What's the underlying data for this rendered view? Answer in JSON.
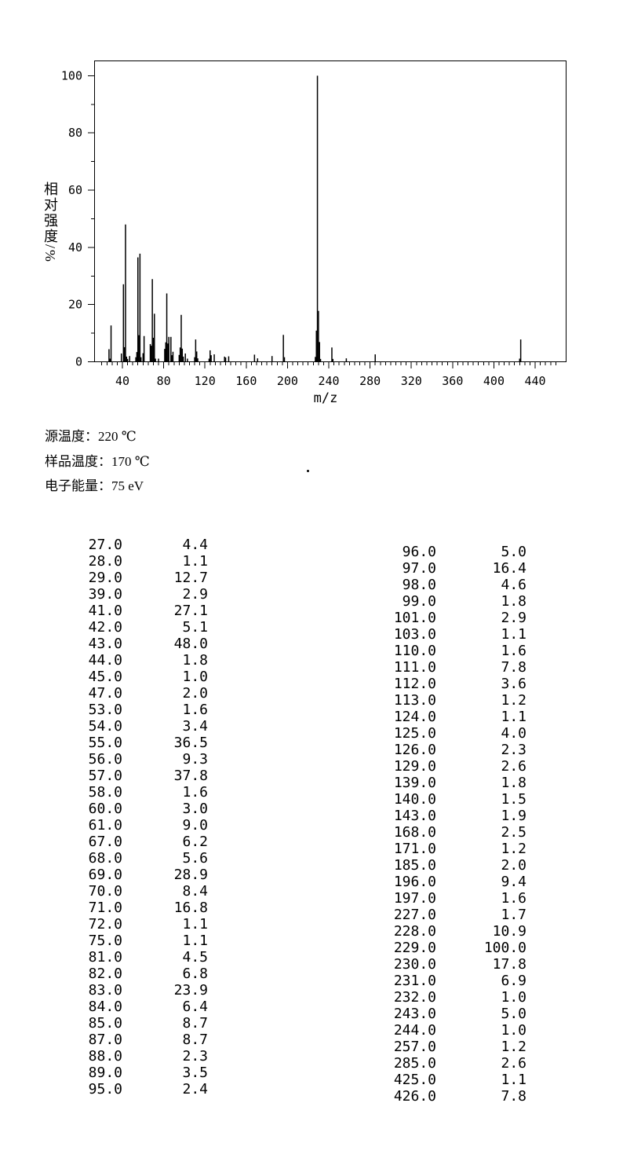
{
  "chart_data": {
    "type": "bar",
    "title": "",
    "xlabel": "m/z",
    "ylabel": "相对强度/%",
    "xlim": [
      13,
      470
    ],
    "ylim": [
      0,
      105.2
    ],
    "grid": false,
    "legend": null,
    "x_major_ticks": [
      40,
      80,
      120,
      160,
      200,
      240,
      280,
      320,
      360,
      400,
      440
    ],
    "x_minor_step": 5,
    "x_minor_range": [
      20,
      460
    ],
    "y_major_ticks": [
      0,
      20,
      40,
      60,
      80,
      100
    ],
    "y_minor_step": 10,
    "line_color": "#000000",
    "peaks": [
      [
        27,
        4.4
      ],
      [
        28,
        1.1
      ],
      [
        29,
        12.7
      ],
      [
        39,
        2.9
      ],
      [
        41,
        27.1
      ],
      [
        42,
        5.1
      ],
      [
        43,
        48.0
      ],
      [
        44,
        1.8
      ],
      [
        45,
        1.0
      ],
      [
        47,
        2.0
      ],
      [
        53,
        1.6
      ],
      [
        54,
        3.4
      ],
      [
        55,
        36.5
      ],
      [
        56,
        9.3
      ],
      [
        57,
        37.8
      ],
      [
        58,
        1.6
      ],
      [
        60,
        3.0
      ],
      [
        61,
        9.0
      ],
      [
        67,
        6.2
      ],
      [
        68,
        5.6
      ],
      [
        69,
        28.9
      ],
      [
        70,
        8.4
      ],
      [
        71,
        16.8
      ],
      [
        72,
        1.1
      ],
      [
        75,
        1.1
      ],
      [
        81,
        4.5
      ],
      [
        82,
        6.8
      ],
      [
        83,
        23.9
      ],
      [
        84,
        6.4
      ],
      [
        85,
        8.7
      ],
      [
        87,
        8.7
      ],
      [
        88,
        2.3
      ],
      [
        89,
        3.5
      ],
      [
        95,
        2.4
      ],
      [
        96,
        5.0
      ],
      [
        97,
        16.4
      ],
      [
        98,
        4.6
      ],
      [
        99,
        1.8
      ],
      [
        101,
        2.9
      ],
      [
        103,
        1.1
      ],
      [
        110,
        1.6
      ],
      [
        111,
        7.8
      ],
      [
        112,
        3.6
      ],
      [
        113,
        1.2
      ],
      [
        124,
        1.1
      ],
      [
        125,
        4.0
      ],
      [
        126,
        2.3
      ],
      [
        129,
        2.6
      ],
      [
        139,
        1.8
      ],
      [
        140,
        1.5
      ],
      [
        143,
        1.9
      ],
      [
        168,
        2.5
      ],
      [
        171,
        1.2
      ],
      [
        185,
        2.0
      ],
      [
        196,
        9.4
      ],
      [
        197,
        1.6
      ],
      [
        227,
        1.7
      ],
      [
        228,
        10.9
      ],
      [
        229,
        100.0
      ],
      [
        230,
        17.8
      ],
      [
        231,
        6.9
      ],
      [
        232,
        1.0
      ],
      [
        243,
        5.0
      ],
      [
        244,
        1.0
      ],
      [
        257,
        1.2
      ],
      [
        285,
        2.6
      ],
      [
        425,
        1.1
      ],
      [
        426,
        7.8
      ]
    ]
  },
  "conditions": [
    {
      "label": "源温度：",
      "value": "220 ℃"
    },
    {
      "label": "样品温度：",
      "value": "170 ℃"
    },
    {
      "label": "电子能量：",
      "value": "75 eV"
    }
  ],
  "peak_table": {
    "left": [
      [
        "27.0",
        "4.4"
      ],
      [
        "28.0",
        "1.1"
      ],
      [
        "29.0",
        "12.7"
      ],
      [
        "39.0",
        "2.9"
      ],
      [
        "41.0",
        "27.1"
      ],
      [
        "42.0",
        "5.1"
      ],
      [
        "43.0",
        "48.0"
      ],
      [
        "44.0",
        "1.8"
      ],
      [
        "45.0",
        "1.0"
      ],
      [
        "47.0",
        "2.0"
      ],
      [
        "53.0",
        "1.6"
      ],
      [
        "54.0",
        "3.4"
      ],
      [
        "55.0",
        "36.5"
      ],
      [
        "56.0",
        "9.3"
      ],
      [
        "57.0",
        "37.8"
      ],
      [
        "58.0",
        "1.6"
      ],
      [
        "60.0",
        "3.0"
      ],
      [
        "61.0",
        "9.0"
      ],
      [
        "67.0",
        "6.2"
      ],
      [
        "68.0",
        "5.6"
      ],
      [
        "69.0",
        "28.9"
      ],
      [
        "70.0",
        "8.4"
      ],
      [
        "71.0",
        "16.8"
      ],
      [
        "72.0",
        "1.1"
      ],
      [
        "75.0",
        "1.1"
      ],
      [
        "81.0",
        "4.5"
      ],
      [
        "82.0",
        "6.8"
      ],
      [
        "83.0",
        "23.9"
      ],
      [
        "84.0",
        "6.4"
      ],
      [
        "85.0",
        "8.7"
      ],
      [
        "87.0",
        "8.7"
      ],
      [
        "88.0",
        "2.3"
      ],
      [
        "89.0",
        "3.5"
      ],
      [
        "95.0",
        "2.4"
      ]
    ],
    "right": [
      [
        "96.0",
        "5.0"
      ],
      [
        "97.0",
        "16.4"
      ],
      [
        "98.0",
        "4.6"
      ],
      [
        "99.0",
        "1.8"
      ],
      [
        "101.0",
        "2.9"
      ],
      [
        "103.0",
        "1.1"
      ],
      [
        "110.0",
        "1.6"
      ],
      [
        "111.0",
        "7.8"
      ],
      [
        "112.0",
        "3.6"
      ],
      [
        "113.0",
        "1.2"
      ],
      [
        "124.0",
        "1.1"
      ],
      [
        "125.0",
        "4.0"
      ],
      [
        "126.0",
        "2.3"
      ],
      [
        "129.0",
        "2.6"
      ],
      [
        "139.0",
        "1.8"
      ],
      [
        "140.0",
        "1.5"
      ],
      [
        "143.0",
        "1.9"
      ],
      [
        "168.0",
        "2.5"
      ],
      [
        "171.0",
        "1.2"
      ],
      [
        "185.0",
        "2.0"
      ],
      [
        "196.0",
        "9.4"
      ],
      [
        "197.0",
        "1.6"
      ],
      [
        "227.0",
        "1.7"
      ],
      [
        "228.0",
        "10.9"
      ],
      [
        "229.0",
        "100.0"
      ],
      [
        "230.0",
        "17.8"
      ],
      [
        "231.0",
        "6.9"
      ],
      [
        "232.0",
        "1.0"
      ],
      [
        "243.0",
        "5.0"
      ],
      [
        "244.0",
        "1.0"
      ],
      [
        "257.0",
        "1.2"
      ],
      [
        "285.0",
        "2.6"
      ],
      [
        "425.0",
        "1.1"
      ],
      [
        "426.0",
        "7.8"
      ]
    ]
  }
}
